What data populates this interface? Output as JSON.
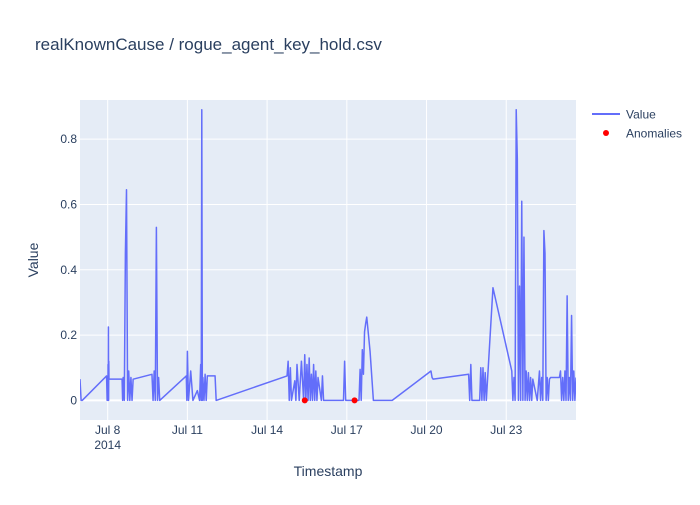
{
  "chart_data": {
    "type": "line",
    "title": "realKnownCause / rogue_agent_key_hold.csv",
    "xlabel": "Timestamp",
    "ylabel": "Value",
    "x_range": [
      "2014-07-06T23:00",
      "2014-07-25T15:00"
    ],
    "ylim": [
      -0.06,
      0.92
    ],
    "x_ticks": [
      {
        "date": "2014-07-08",
        "label": "Jul 8",
        "sublabel": "2014"
      },
      {
        "date": "2014-07-11",
        "label": "Jul 11"
      },
      {
        "date": "2014-07-14",
        "label": "Jul 14"
      },
      {
        "date": "2014-07-17",
        "label": "Jul 17"
      },
      {
        "date": "2014-07-20",
        "label": "Jul 20"
      },
      {
        "date": "2014-07-23",
        "label": "Jul 23"
      }
    ],
    "y_ticks": [
      0,
      0.2,
      0.4,
      0.6,
      0.8
    ],
    "y_tick_labels": [
      "0",
      "0.2",
      "0.4",
      "0.6",
      "0.8"
    ],
    "grid": true,
    "legend_position": "top-right",
    "series": [
      {
        "name": "Value",
        "mode": "line",
        "color": "#636efa",
        "x": [
          "2014-07-06T23:00",
          "2014-07-07T00:00",
          "2014-07-07T01:00",
          "2014-07-07T23:00",
          "2014-07-07T23:30",
          "2014-07-08T00:00",
          "2014-07-08T00:10",
          "2014-07-08T00:20",
          "2014-07-08T00:30",
          "2014-07-08T00:40",
          "2014-07-08T00:50",
          "2014-07-08T01:00",
          "2014-07-08T01:10",
          "2014-07-08T13:00",
          "2014-07-08T13:30",
          "2014-07-08T14:00",
          "2014-07-08T15:00",
          "2014-07-08T16:00",
          "2014-07-08T17:00",
          "2014-07-08T18:00",
          "2014-07-08T19:00",
          "2014-07-08T20:00",
          "2014-07-08T21:00",
          "2014-07-08T22:00",
          "2014-07-08T23:00",
          "2014-07-09T16:00",
          "2014-07-09T17:00",
          "2014-07-09T18:00",
          "2014-07-09T19:00",
          "2014-07-09T20:00",
          "2014-07-09T21:00",
          "2014-07-09T22:00",
          "2014-07-09T23:00",
          "2014-07-10T23:00",
          "2014-07-10T23:30",
          "2014-07-11T00:00",
          "2014-07-11T01:00",
          "2014-07-11T03:00",
          "2014-07-11T05:00",
          "2014-07-11T09:00",
          "2014-07-11T11:00",
          "2014-07-11T12:00",
          "2014-07-11T12:30",
          "2014-07-11T13:00",
          "2014-07-11T13:30",
          "2014-07-11T14:00",
          "2014-07-11T15:00",
          "2014-07-11T16:00",
          "2014-07-11T17:00",
          "2014-07-11T18:00",
          "2014-07-12T01:00",
          "2014-07-12T02:00",
          "2014-07-14T18:00",
          "2014-07-14T19:00",
          "2014-07-14T20:00",
          "2014-07-14T21:00",
          "2014-07-14T22:00",
          "2014-07-15T01:00",
          "2014-07-15T02:00",
          "2014-07-15T03:00",
          "2014-07-15T05:00",
          "2014-07-15T07:00",
          "2014-07-15T09:00",
          "2014-07-15T10:00",
          "2014-07-15T11:00",
          "2014-07-15T12:00",
          "2014-07-15T13:00",
          "2014-07-15T14:00",
          "2014-07-15T15:00",
          "2014-07-15T16:00",
          "2014-07-15T17:00",
          "2014-07-15T18:00",
          "2014-07-15T19:00",
          "2014-07-15T20:00",
          "2014-07-15T21:00",
          "2014-07-15T22:00",
          "2014-07-16T01:00",
          "2014-07-16T02:00",
          "2014-07-16T03:00",
          "2014-07-16T21:00",
          "2014-07-16T22:00",
          "2014-07-16T23:00",
          "2014-07-17T11:00",
          "2014-07-17T12:00",
          "2014-07-17T13:00",
          "2014-07-17T14:00",
          "2014-07-17T15:00",
          "2014-07-17T16:00",
          "2014-07-17T17:00",
          "2014-07-17T18:00",
          "2014-07-17T19:00",
          "2014-07-17T21:00",
          "2014-07-18T00:00",
          "2014-07-18T02:00",
          "2014-07-18T13:00",
          "2014-07-18T17:00",
          "2014-07-20T04:00",
          "2014-07-20T05:00",
          "2014-07-20T06:00",
          "2014-07-21T14:00",
          "2014-07-21T15:00",
          "2014-07-21T16:00",
          "2014-07-21T17:00",
          "2014-07-22T00:00",
          "2014-07-22T01:00",
          "2014-07-22T02:00",
          "2014-07-22T03:00",
          "2014-07-22T04:00",
          "2014-07-22T05:00",
          "2014-07-22T06:00",
          "2014-07-22T12:00",
          "2014-07-23T05:00",
          "2014-07-23T06:00",
          "2014-07-23T07:00",
          "2014-07-23T08:00",
          "2014-07-23T09:00",
          "2014-07-23T10:00",
          "2014-07-23T11:00",
          "2014-07-23T12:00",
          "2014-07-23T13:00",
          "2014-07-23T14:00",
          "2014-07-23T15:00",
          "2014-07-23T16:00",
          "2014-07-23T17:00",
          "2014-07-23T18:00",
          "2014-07-23T19:00",
          "2014-07-23T20:00",
          "2014-07-23T21:00",
          "2014-07-23T22:00",
          "2014-07-23T23:00",
          "2014-07-24T00:00",
          "2014-07-24T04:00",
          "2014-07-24T06:00",
          "2014-07-24T07:00",
          "2014-07-24T08:00",
          "2014-07-24T09:00",
          "2014-07-24T10:00",
          "2014-07-24T11:00",
          "2014-07-24T12:00",
          "2014-07-24T13:00",
          "2014-07-24T14:00",
          "2014-07-24T15:00",
          "2014-07-24T16:00",
          "2014-07-25T00:00",
          "2014-07-25T01:00",
          "2014-07-25T02:00",
          "2014-07-25T03:00",
          "2014-07-25T04:00",
          "2014-07-25T05:00",
          "2014-07-25T06:00",
          "2014-07-25T07:00",
          "2014-07-25T08:00",
          "2014-07-25T09:00",
          "2014-07-25T10:00",
          "2014-07-25T11:00",
          "2014-07-25T12:00",
          "2014-07-25T13:00",
          "2014-07-25T14:00",
          "2014-07-25T15:00"
        ],
        "y": [
          0.065,
          0.0,
          0.0,
          0.075,
          0.0,
          0.07,
          0.0,
          0.11,
          0.0,
          0.225,
          0.0,
          0.12,
          0.065,
          0.065,
          0.0,
          0.07,
          0.0,
          0.45,
          0.645,
          0.0,
          0.09,
          0.0,
          0.07,
          0.0,
          0.065,
          0.08,
          0.0,
          0.09,
          0.0,
          0.53,
          0.0,
          0.07,
          0.0,
          0.075,
          0.0,
          0.15,
          0.0,
          0.09,
          0.0,
          0.03,
          0.0,
          0.11,
          0.0,
          0.89,
          0.0,
          0.07,
          0.0,
          0.08,
          0.0,
          0.075,
          0.075,
          0.0,
          0.075,
          0.12,
          0.0,
          0.1,
          0.0,
          0.06,
          0.0,
          0.11,
          0.0,
          0.12,
          0.0,
          0.14,
          0.0,
          0.11,
          0.0,
          0.13,
          0.0,
          0.08,
          0.0,
          0.11,
          0.0,
          0.09,
          0.0,
          0.07,
          0.0,
          0.075,
          0.0,
          0.0,
          0.12,
          0.0,
          0.0,
          0.095,
          0.0,
          0.155,
          0.08,
          0.21,
          0.235,
          0.255,
          0.22,
          0.15,
          0.0,
          0.0,
          0.0,
          0.0,
          0.09,
          0.07,
          0.065,
          0.08,
          0.0,
          0.11,
          0.0,
          0.0,
          0.1,
          0.0,
          0.1,
          0.0,
          0.085,
          0.0,
          0.345,
          0.09,
          0.0,
          0.07,
          0.0,
          0.89,
          0.74,
          0.0,
          0.35,
          0.0,
          0.61,
          0.0,
          0.5,
          0.0,
          0.09,
          0.0,
          0.085,
          0.0,
          0.07,
          0.0,
          0.065,
          0.0,
          0.09,
          0.0,
          0.07,
          0.0,
          0.52,
          0.45,
          0.0,
          0.07,
          0.0,
          0.065,
          0.07,
          0.07,
          0.09,
          0.0,
          0.07,
          0.0,
          0.09,
          0.0,
          0.32,
          0.0,
          0.07,
          0.0,
          0.26,
          0.0,
          0.09,
          0.0,
          0.07
        ]
      },
      {
        "name": "Anomalies",
        "mode": "markers",
        "color": "#ff0000",
        "x": [
          "2014-07-15T10:00",
          "2014-07-17T07:00"
        ],
        "y": [
          0,
          0
        ]
      }
    ]
  }
}
